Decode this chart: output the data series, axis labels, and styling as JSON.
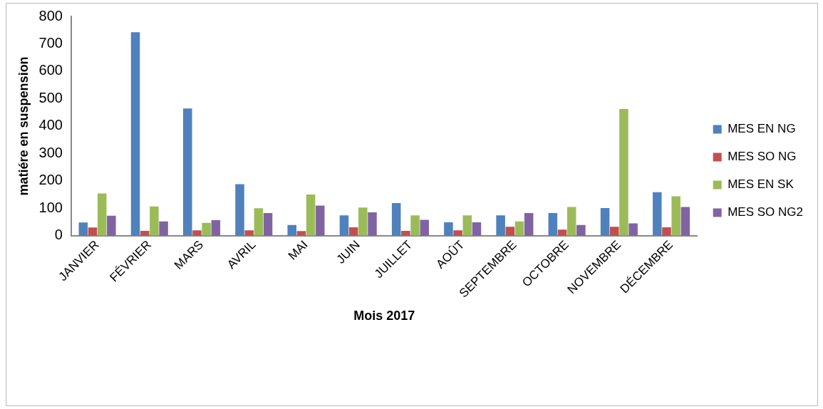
{
  "chart_data": {
    "type": "bar",
    "xlabel": "Mois 2017",
    "ylabel": "matiére en suspension",
    "categories": [
      "JANVIER",
      "FÉVRIER",
      "MARS",
      "AVRIL",
      "MAI",
      "JUIN",
      "JUILLET",
      "AOÛT",
      "SEPTEMBRE",
      "OCTOBRE",
      "NOVEMBRE",
      "DÉCEMBRE"
    ],
    "series": [
      {
        "name": "MES EN NG",
        "color": "#4f81bd",
        "values": [
          48,
          742,
          464,
          188,
          39,
          74,
          119,
          49,
          74,
          83,
          101,
          159
        ]
      },
      {
        "name": "MES SO NG",
        "color": "#c0504d",
        "values": [
          30,
          18,
          20,
          20,
          17,
          31,
          18,
          20,
          33,
          22,
          33,
          31
        ]
      },
      {
        "name": "MES EN SK",
        "color": "#9bbb59",
        "values": [
          154,
          107,
          47,
          100,
          150,
          103,
          74,
          74,
          52,
          105,
          462,
          144
        ]
      },
      {
        "name": "MES SO NG2",
        "color": "#8064a2",
        "values": [
          73,
          52,
          57,
          83,
          110,
          85,
          58,
          49,
          83,
          39,
          45,
          105
        ]
      }
    ],
    "ylim": [
      0,
      800
    ],
    "yticks": [
      0,
      100,
      200,
      300,
      400,
      500,
      600,
      700,
      800
    ],
    "grid": false,
    "legend": "right"
  }
}
